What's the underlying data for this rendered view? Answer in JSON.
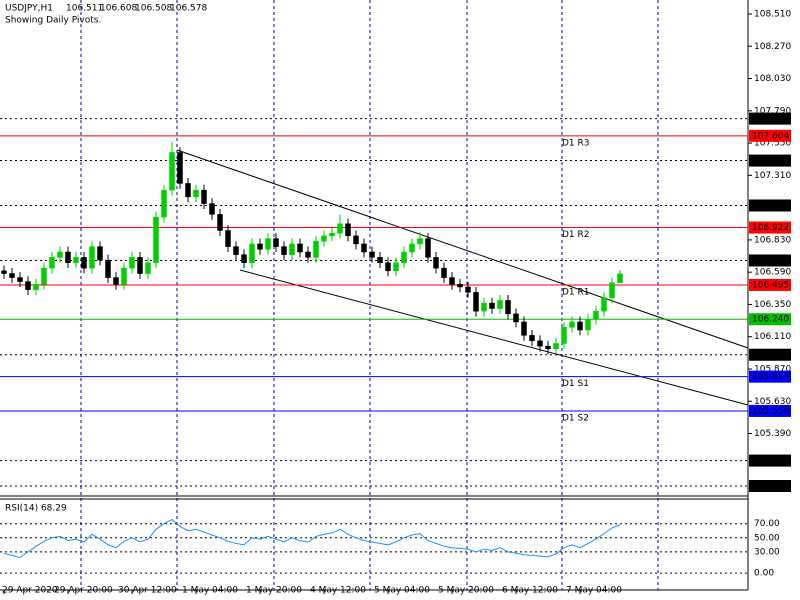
{
  "chart_data": {
    "type": "candlestick",
    "title": "USDJPY,H1",
    "subtitle": "Showing Daily Pivots.",
    "categories": [
      "29 Apr 2020",
      null,
      null,
      null,
      null,
      null,
      null,
      null,
      "29 Apr 20:00",
      null,
      null,
      null,
      null,
      null,
      null,
      null,
      "30 Apr 12:00",
      null,
      null,
      null,
      null,
      null,
      null,
      null,
      "1 May 04:00",
      null,
      null,
      null,
      null,
      null,
      null,
      null,
      "1 May 20:00",
      null,
      null,
      null,
      null,
      null,
      null,
      null,
      "4 May 12:00",
      null,
      null,
      null,
      null,
      null,
      null,
      null,
      "5 May 04:00",
      null,
      null,
      null,
      null,
      null,
      null,
      null,
      "5 May 20:00",
      null,
      null,
      null,
      null,
      null,
      null,
      null,
      "6 May 12:00",
      null,
      null,
      null,
      null,
      null,
      null,
      null,
      "7 May 04:00",
      null,
      null,
      null,
      null,
      null
    ],
    "open": [
      106.6,
      106.58,
      106.55,
      106.52,
      106.46,
      106.5,
      106.62,
      106.7,
      106.74,
      106.66,
      106.7,
      106.62,
      106.78,
      106.68,
      106.55,
      106.5,
      106.62,
      106.7,
      106.58,
      106.66,
      107.0,
      107.2,
      107.48,
      107.25,
      107.15,
      107.2,
      107.1,
      107.02,
      106.9,
      106.78,
      106.72,
      106.66,
      106.8,
      106.76,
      106.84,
      106.78,
      106.72,
      106.8,
      106.74,
      106.7,
      106.82,
      106.86,
      106.88,
      106.95,
      106.86,
      106.8,
      106.74,
      106.7,
      106.66,
      106.6,
      106.66,
      106.74,
      106.8,
      106.84,
      106.7,
      106.62,
      106.55,
      106.5,
      106.48,
      106.44,
      106.3,
      106.36,
      106.32,
      106.38,
      106.28,
      106.22,
      106.12,
      106.08,
      106.04,
      106.02,
      106.06,
      106.18,
      106.22,
      106.16,
      106.24,
      106.3,
      106.4,
      106.511
    ],
    "high": [
      106.64,
      106.62,
      106.59,
      106.56,
      106.54,
      106.66,
      106.74,
      106.78,
      106.78,
      106.74,
      106.74,
      106.82,
      106.82,
      106.72,
      106.59,
      106.66,
      106.74,
      106.74,
      106.7,
      107.04,
      107.24,
      107.56,
      107.52,
      107.29,
      107.24,
      107.24,
      107.14,
      107.06,
      106.94,
      106.82,
      106.76,
      106.84,
      106.84,
      106.88,
      106.88,
      106.82,
      106.84,
      106.84,
      106.78,
      106.86,
      106.9,
      106.92,
      107.02,
      106.99,
      106.9,
      106.84,
      106.78,
      106.74,
      106.7,
      106.7,
      106.78,
      106.84,
      106.89,
      106.88,
      106.74,
      106.66,
      106.59,
      106.54,
      106.52,
      106.48,
      106.4,
      106.4,
      106.42,
      106.42,
      106.32,
      106.26,
      106.16,
      106.12,
      106.08,
      106.1,
      106.22,
      106.26,
      106.26,
      106.28,
      106.34,
      106.44,
      106.55,
      106.608
    ],
    "low": [
      106.54,
      106.51,
      106.48,
      106.42,
      106.42,
      106.46,
      106.58,
      106.66,
      106.62,
      106.62,
      106.58,
      106.58,
      106.64,
      106.51,
      106.46,
      106.46,
      106.58,
      106.54,
      106.54,
      106.62,
      106.96,
      107.16,
      107.21,
      107.11,
      107.11,
      107.06,
      106.98,
      106.86,
      106.74,
      106.68,
      106.62,
      106.62,
      106.72,
      106.72,
      106.74,
      106.68,
      106.68,
      106.7,
      106.66,
      106.66,
      106.78,
      106.82,
      106.84,
      106.82,
      106.76,
      106.7,
      106.66,
      106.62,
      106.56,
      106.56,
      106.62,
      106.7,
      106.76,
      106.66,
      106.58,
      106.51,
      106.46,
      106.44,
      106.4,
      106.26,
      106.26,
      106.28,
      106.28,
      106.24,
      106.18,
      106.08,
      106.04,
      106.0,
      105.98,
      105.98,
      106.02,
      106.14,
      106.12,
      106.12,
      106.2,
      106.26,
      106.36,
      106.508
    ],
    "close": [
      106.58,
      106.55,
      106.52,
      106.46,
      106.5,
      106.62,
      106.7,
      106.74,
      106.66,
      106.7,
      106.62,
      106.78,
      106.68,
      106.55,
      106.5,
      106.62,
      106.7,
      106.58,
      106.66,
      107.0,
      107.2,
      107.48,
      107.25,
      107.15,
      107.2,
      107.1,
      107.02,
      106.9,
      106.78,
      106.72,
      106.66,
      106.8,
      106.76,
      106.84,
      106.78,
      106.72,
      106.8,
      106.74,
      106.7,
      106.82,
      106.86,
      106.88,
      106.95,
      106.86,
      106.8,
      106.74,
      106.7,
      106.66,
      106.6,
      106.66,
      106.74,
      106.8,
      106.84,
      106.7,
      106.62,
      106.55,
      106.5,
      106.48,
      106.44,
      106.3,
      106.36,
      106.32,
      106.38,
      106.28,
      106.22,
      106.12,
      106.08,
      106.04,
      106.02,
      106.06,
      106.18,
      106.22,
      106.16,
      106.24,
      106.3,
      106.4,
      106.511,
      106.578
    ],
    "up_color": "#00d000",
    "down_color": "#000000",
    "ylim": [
      104.933,
      108.614
    ],
    "yticks": [
      {
        "value": 108.51,
        "label": "108.510"
      },
      {
        "value": 108.27,
        "label": "108.270"
      },
      {
        "value": 108.03,
        "label": "108.030"
      },
      {
        "value": 107.79,
        "label": "107.790"
      },
      {
        "value": 107.55,
        "label": "107.550"
      },
      {
        "value": 107.31,
        "label": "107.310"
      },
      {
        "value": 106.83,
        "label": "106.830"
      },
      {
        "value": 106.59,
        "label": "106.590"
      },
      {
        "value": 106.35,
        "label": "106.350"
      },
      {
        "value": 106.11,
        "label": "106.110"
      },
      {
        "value": 105.87,
        "label": "105.870"
      },
      {
        "value": 105.63,
        "label": "105.630"
      },
      {
        "value": 105.39,
        "label": "105.390"
      }
    ],
    "levels": [
      {
        "value": 107.732,
        "label": "107.732",
        "color": "#000000",
        "style": "dotted"
      },
      {
        "value": 107.604,
        "label": "107.604",
        "name": "D1 R3",
        "color": "#ff0000",
        "style": "solid"
      },
      {
        "value": 107.42,
        "label": "107.420",
        "color": "#000000",
        "style": "dotted"
      },
      {
        "value": 107.086,
        "label": "107.086",
        "color": "#000000",
        "style": "dotted"
      },
      {
        "value": 106.922,
        "label": "106.922",
        "name": "D1 R2",
        "color": "#ff0000",
        "style": "solid"
      },
      {
        "value": 106.677,
        "label": "106.677",
        "color": "#000000",
        "style": "dotted"
      },
      {
        "value": 106.495,
        "label": "106.495",
        "name": "D1 R1",
        "color": "#ff0000",
        "style": "solid"
      },
      {
        "value": 106.24,
        "label": "106.240",
        "color": "#00c000",
        "style": "solid"
      },
      {
        "value": 105.976,
        "label": "105.976",
        "color": "#000000",
        "style": "dotted"
      },
      {
        "value": 105.813,
        "label": "105.813",
        "name": "D1 S1",
        "color": "#0000ff",
        "style": "solid"
      },
      {
        "value": 105.558,
        "label": "105.558",
        "name": "D1 S2",
        "color": "#0000ff",
        "style": "solid"
      },
      {
        "value": 105.189,
        "label": "105.189",
        "color": "#000000",
        "style": "dotted"
      },
      {
        "value": 105.0,
        "label": "105.000",
        "color": "#000000",
        "style": "dotted"
      }
    ],
    "indicator": {
      "type": "line",
      "title": "RSI(14) 68.29",
      "color": "#1e90ff",
      "values": [
        28,
        25,
        22,
        30,
        38,
        45,
        50,
        52,
        46,
        48,
        44,
        55,
        48,
        40,
        36,
        45,
        50,
        44,
        48,
        62,
        70,
        76,
        66,
        60,
        62,
        58,
        54,
        50,
        45,
        42,
        40,
        50,
        48,
        52,
        48,
        44,
        50,
        46,
        44,
        52,
        55,
        57,
        62,
        55,
        50,
        46,
        44,
        42,
        40,
        44,
        50,
        54,
        56,
        46,
        42,
        38,
        36,
        35,
        34,
        30,
        34,
        32,
        36,
        30,
        28,
        26,
        25,
        24,
        23,
        27,
        36,
        40,
        36,
        42,
        48,
        56,
        64,
        68.29
      ],
      "ylim": [
        -24,
        105
      ],
      "yticks": [
        {
          "value": 70,
          "label": "70.00"
        },
        {
          "value": 50,
          "label": "50.00"
        },
        {
          "value": 30,
          "label": "30.00"
        },
        {
          "value": 0,
          "label": "0.00"
        }
      ]
    }
  }
}
